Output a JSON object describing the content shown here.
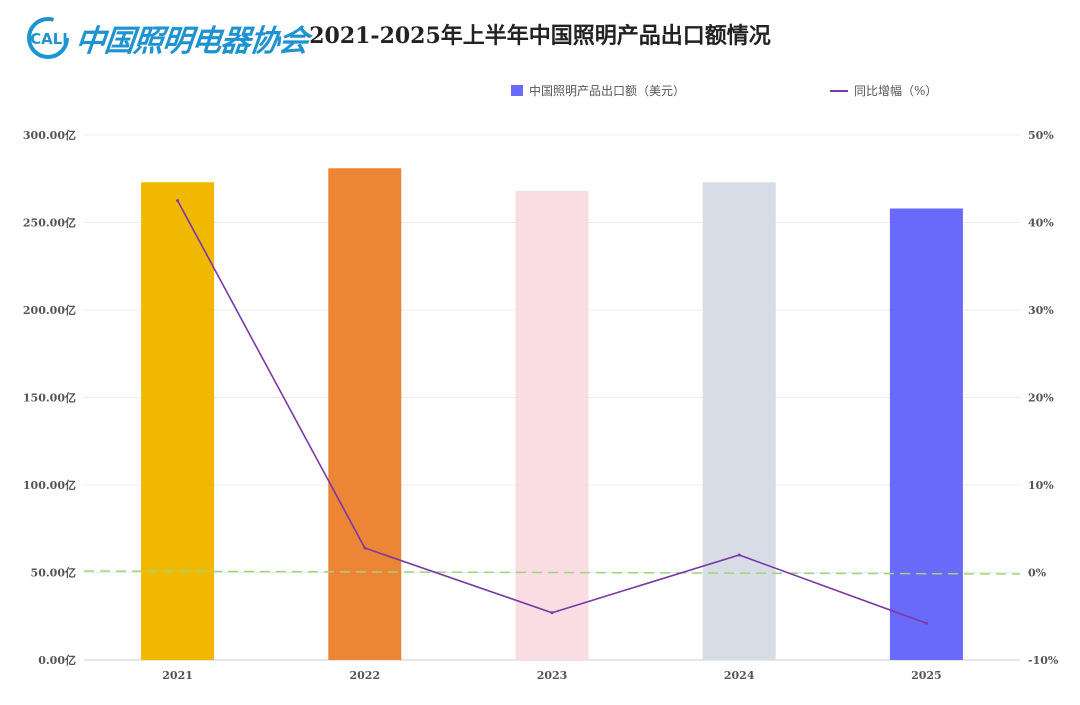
{
  "logo": {
    "mark_text": "CALI",
    "name": "中国照明电器协会",
    "color": "#1f93cf"
  },
  "chart_data": {
    "type": "bar",
    "title": "2021-2025年上半年中国照明产品出口额情况",
    "categories": [
      "2021",
      "2022",
      "2023",
      "2024",
      "2025"
    ],
    "series": [
      {
        "name": "中国照明产品出口额（美元）",
        "type": "bar",
        "axis": "left",
        "values": [
          273,
          281,
          268,
          273,
          258
        ],
        "colors": [
          "#f0b800",
          "#ed8536",
          "#f9dde2",
          "#d7dce6",
          "#6a6afa"
        ],
        "legend_color": "#6a6afa"
      },
      {
        "name": "同比增幅（%）",
        "type": "line",
        "axis": "right",
        "values": [
          42.5,
          2.8,
          -4.6,
          2.0,
          -5.8
        ],
        "color": "#7b38a6"
      }
    ],
    "y_left": {
      "ylim": [
        0,
        300
      ],
      "ticks": [
        "0.00亿",
        "50.00亿",
        "100.00亿",
        "150.00亿",
        "200.00亿",
        "250.00亿",
        "300.00亿"
      ]
    },
    "y_right": {
      "ylim": [
        -10,
        50
      ],
      "ticks": [
        "-10%",
        "0%",
        "10%",
        "20%",
        "30%",
        "40%",
        "50%"
      ]
    },
    "reference_line": {
      "axis": "right",
      "value": 0,
      "style": "dashed",
      "color": "#9ed47c"
    },
    "grid": true,
    "legend_position": "top-right"
  }
}
